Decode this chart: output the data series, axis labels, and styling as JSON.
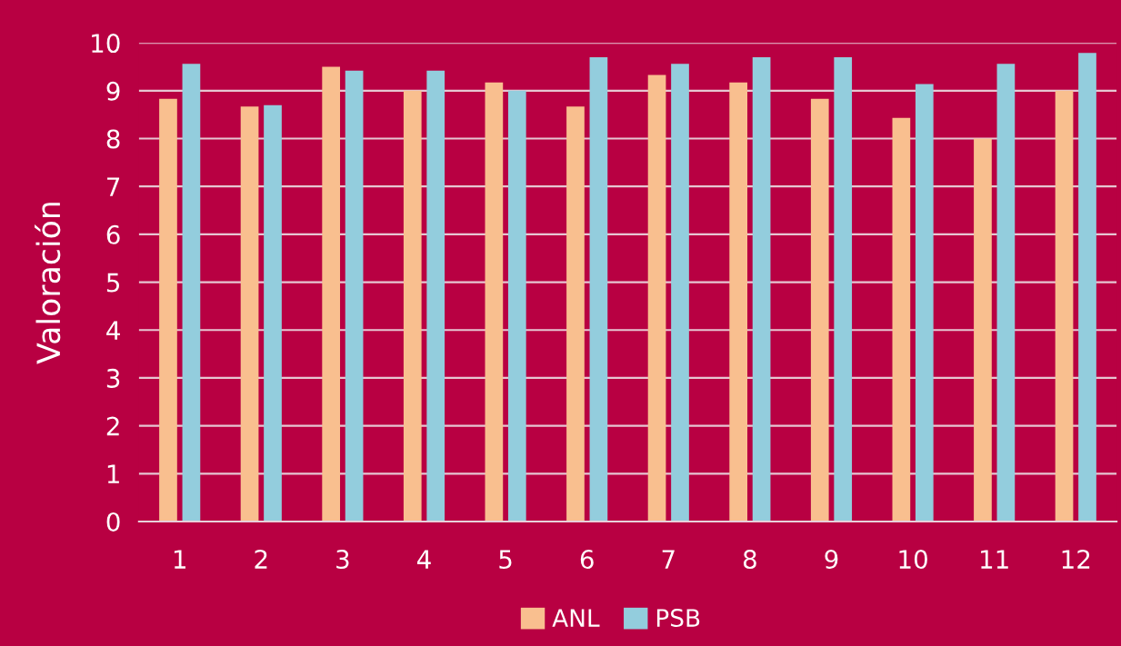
{
  "chart_data": {
    "type": "bar",
    "ylabel": "Valoración",
    "categories": [
      "1",
      "2",
      "3",
      "4",
      "5",
      "6",
      "7",
      "8",
      "9",
      "10",
      "11",
      "12"
    ],
    "series": [
      {
        "name": "ANL",
        "color": "#f9bf8f",
        "values": [
          8.83,
          8.67,
          9.5,
          9.0,
          9.17,
          8.67,
          9.33,
          9.17,
          8.83,
          8.43,
          8.0,
          9.0
        ]
      },
      {
        "name": "PSB",
        "color": "#93cddd",
        "values": [
          9.56,
          8.7,
          9.42,
          9.42,
          9.0,
          9.7,
          9.56,
          9.7,
          9.7,
          9.14,
          9.56,
          9.79
        ]
      }
    ],
    "ylim": [
      0,
      10
    ],
    "yticks": [
      0,
      1,
      2,
      3,
      4,
      5,
      6,
      7,
      8,
      9,
      10
    ],
    "grid": "y",
    "legend": "bottom"
  }
}
